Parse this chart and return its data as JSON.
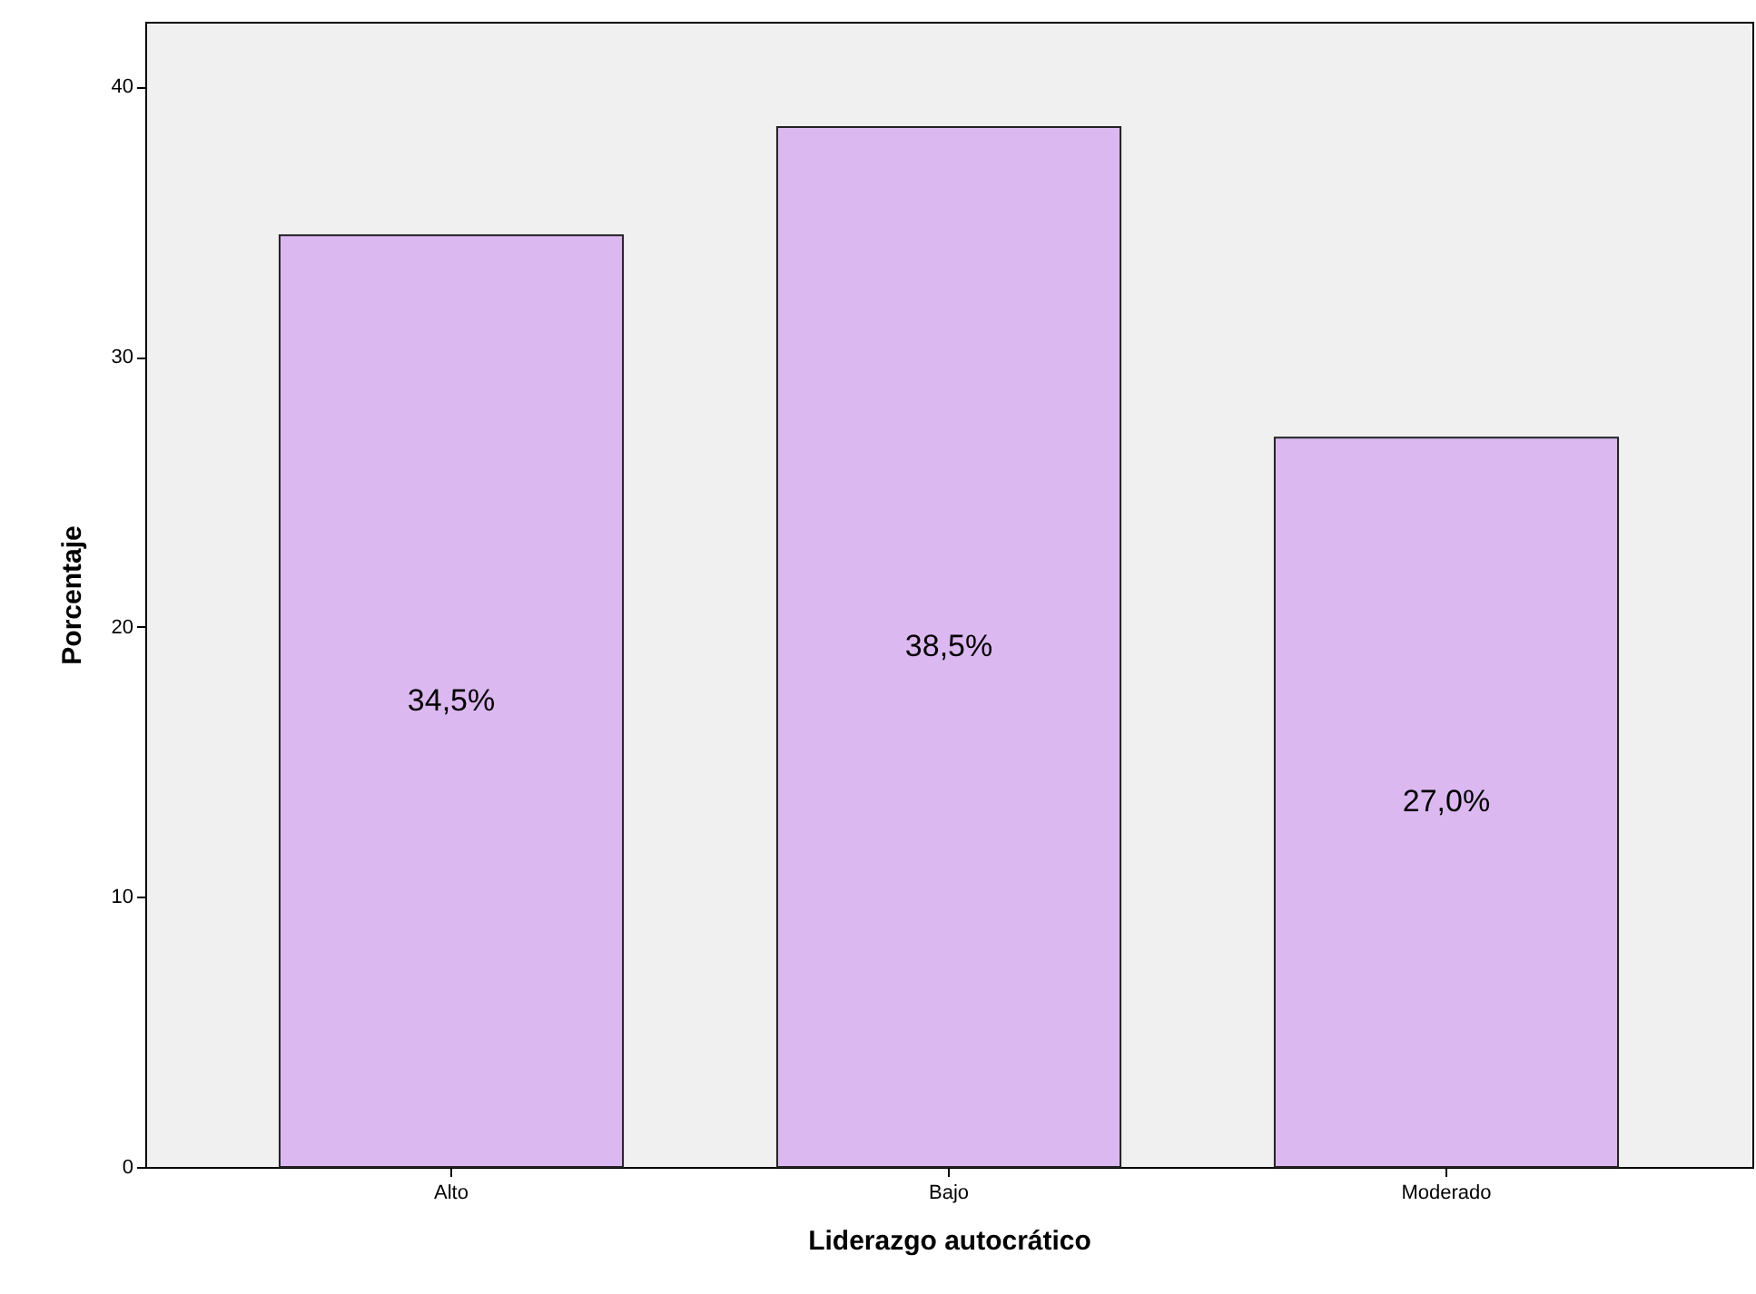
{
  "chart_data": {
    "type": "bar",
    "xlabel": "Liderazgo autocrático",
    "ylabel": "Porcentaje",
    "categories": [
      "Alto",
      "Bajo",
      "Moderado"
    ],
    "values": [
      34.5,
      38.5,
      27.0
    ],
    "value_labels": [
      "34,5%",
      "38,5%",
      "27,0%"
    ],
    "color": "#dcb8f0",
    "ylim": [
      0,
      42.4
    ],
    "yticks": [
      0,
      10,
      20,
      30,
      40
    ],
    "grid": false
  }
}
